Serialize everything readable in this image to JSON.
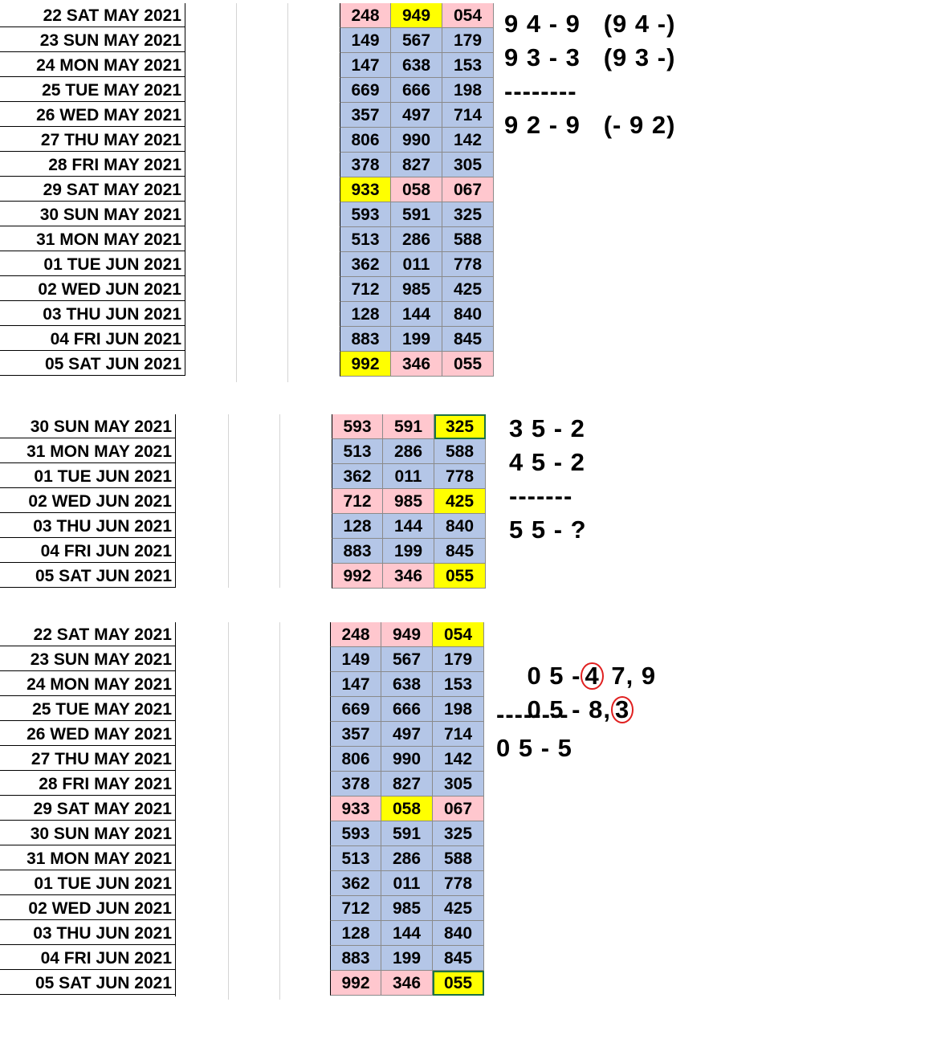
{
  "colors": {
    "blue": "#b4c6e7",
    "pink": "#ffc7ce",
    "yellow": "#ffff00"
  },
  "table1": {
    "rows": [
      {
        "date": "22 SAT MAY 2021",
        "cells": [
          {
            "v": "248",
            "c": "pink"
          },
          {
            "v": "949",
            "c": "yellow"
          },
          {
            "v": "054",
            "c": "pink"
          }
        ]
      },
      {
        "date": "23 SUN MAY 2021",
        "cells": [
          {
            "v": "149",
            "c": "blue"
          },
          {
            "v": "567",
            "c": "blue"
          },
          {
            "v": "179",
            "c": "blue"
          }
        ]
      },
      {
        "date": "24 MON MAY 2021",
        "cells": [
          {
            "v": "147",
            "c": "blue"
          },
          {
            "v": "638",
            "c": "blue"
          },
          {
            "v": "153",
            "c": "blue"
          }
        ]
      },
      {
        "date": "25 TUE MAY 2021",
        "cells": [
          {
            "v": "669",
            "c": "blue"
          },
          {
            "v": "666",
            "c": "blue"
          },
          {
            "v": "198",
            "c": "blue"
          }
        ]
      },
      {
        "date": "26 WED MAY 2021",
        "cells": [
          {
            "v": "357",
            "c": "blue"
          },
          {
            "v": "497",
            "c": "blue"
          },
          {
            "v": "714",
            "c": "blue"
          }
        ]
      },
      {
        "date": "27 THU MAY 2021",
        "cells": [
          {
            "v": "806",
            "c": "blue"
          },
          {
            "v": "990",
            "c": "blue"
          },
          {
            "v": "142",
            "c": "blue"
          }
        ]
      },
      {
        "date": "28 FRI MAY 2021",
        "cells": [
          {
            "v": "378",
            "c": "blue"
          },
          {
            "v": "827",
            "c": "blue"
          },
          {
            "v": "305",
            "c": "blue"
          }
        ]
      },
      {
        "date": "29 SAT MAY 2021",
        "cells": [
          {
            "v": "933",
            "c": "yellow"
          },
          {
            "v": "058",
            "c": "pink"
          },
          {
            "v": "067",
            "c": "pink"
          }
        ]
      },
      {
        "date": "30 SUN MAY 2021",
        "cells": [
          {
            "v": "593",
            "c": "blue"
          },
          {
            "v": "591",
            "c": "blue"
          },
          {
            "v": "325",
            "c": "blue"
          }
        ]
      },
      {
        "date": "31 MON MAY 2021",
        "cells": [
          {
            "v": "513",
            "c": "blue"
          },
          {
            "v": "286",
            "c": "blue"
          },
          {
            "v": "588",
            "c": "blue"
          }
        ]
      },
      {
        "date": "01 TUE JUN 2021",
        "cells": [
          {
            "v": "362",
            "c": "blue"
          },
          {
            "v": "011",
            "c": "blue"
          },
          {
            "v": "778",
            "c": "blue"
          }
        ]
      },
      {
        "date": "02 WED JUN 2021",
        "cells": [
          {
            "v": "712",
            "c": "blue"
          },
          {
            "v": "985",
            "c": "blue"
          },
          {
            "v": "425",
            "c": "blue"
          }
        ]
      },
      {
        "date": "03 THU JUN 2021",
        "cells": [
          {
            "v": "128",
            "c": "blue"
          },
          {
            "v": "144",
            "c": "blue"
          },
          {
            "v": "840",
            "c": "blue"
          }
        ]
      },
      {
        "date": "04 FRI JUN 2021",
        "cells": [
          {
            "v": "883",
            "c": "blue"
          },
          {
            "v": "199",
            "c": "blue"
          },
          {
            "v": "845",
            "c": "blue"
          }
        ]
      },
      {
        "date": "05 SAT JUN 2021",
        "cells": [
          {
            "v": "992",
            "c": "yellow"
          },
          {
            "v": "346",
            "c": "pink"
          },
          {
            "v": "055",
            "c": "pink"
          }
        ]
      }
    ],
    "notes": {
      "l1": "9 4 - 9   (9 4 -)",
      "l2": "9 3 - 3   (9 3 -)",
      "l3": "--------",
      "l4": "9 2 - 9   (- 9 2)"
    }
  },
  "table2": {
    "rows": [
      {
        "date": "30 SUN MAY 2021",
        "cells": [
          {
            "v": "593",
            "c": "pink"
          },
          {
            "v": "591",
            "c": "pink"
          },
          {
            "v": "325",
            "c": "yellow"
          }
        ]
      },
      {
        "date": "31 MON MAY 2021",
        "cells": [
          {
            "v": "513",
            "c": "blue"
          },
          {
            "v": "286",
            "c": "blue"
          },
          {
            "v": "588",
            "c": "blue"
          }
        ]
      },
      {
        "date": "01 TUE JUN 2021",
        "cells": [
          {
            "v": "362",
            "c": "blue"
          },
          {
            "v": "011",
            "c": "blue"
          },
          {
            "v": "778",
            "c": "blue"
          }
        ]
      },
      {
        "date": "02 WED JUN 2021",
        "cells": [
          {
            "v": "712",
            "c": "pink"
          },
          {
            "v": "985",
            "c": "pink"
          },
          {
            "v": "425",
            "c": "yellow"
          }
        ]
      },
      {
        "date": "03 THU JUN 2021",
        "cells": [
          {
            "v": "128",
            "c": "blue"
          },
          {
            "v": "144",
            "c": "blue"
          },
          {
            "v": "840",
            "c": "blue"
          }
        ]
      },
      {
        "date": "04 FRI JUN 2021",
        "cells": [
          {
            "v": "883",
            "c": "blue"
          },
          {
            "v": "199",
            "c": "blue"
          },
          {
            "v": "845",
            "c": "blue"
          }
        ]
      },
      {
        "date": "05 SAT JUN 2021",
        "cells": [
          {
            "v": "992",
            "c": "pink"
          },
          {
            "v": "346",
            "c": "pink"
          },
          {
            "v": "055",
            "c": "yellow"
          }
        ]
      }
    ],
    "notes": {
      "l1": "3 5 - 2",
      "l2": "4 5 - 2",
      "l3": "-------",
      "l4": "5 5 - ?"
    }
  },
  "table3": {
    "rows": [
      {
        "date": "22 SAT MAY 2021",
        "cells": [
          {
            "v": "248",
            "c": "pink"
          },
          {
            "v": "949",
            "c": "pink"
          },
          {
            "v": "054",
            "c": "yellow"
          }
        ]
      },
      {
        "date": "23 SUN MAY 2021",
        "cells": [
          {
            "v": "149",
            "c": "blue"
          },
          {
            "v": "567",
            "c": "blue"
          },
          {
            "v": "179",
            "c": "blue"
          }
        ]
      },
      {
        "date": "24 MON MAY 2021",
        "cells": [
          {
            "v": "147",
            "c": "blue"
          },
          {
            "v": "638",
            "c": "blue"
          },
          {
            "v": "153",
            "c": "blue"
          }
        ]
      },
      {
        "date": "25 TUE MAY 2021",
        "cells": [
          {
            "v": "669",
            "c": "blue"
          },
          {
            "v": "666",
            "c": "blue"
          },
          {
            "v": "198",
            "c": "blue"
          }
        ]
      },
      {
        "date": "26 WED MAY 2021",
        "cells": [
          {
            "v": "357",
            "c": "blue"
          },
          {
            "v": "497",
            "c": "blue"
          },
          {
            "v": "714",
            "c": "blue"
          }
        ]
      },
      {
        "date": "27 THU MAY 2021",
        "cells": [
          {
            "v": "806",
            "c": "blue"
          },
          {
            "v": "990",
            "c": "blue"
          },
          {
            "v": "142",
            "c": "blue"
          }
        ]
      },
      {
        "date": "28 FRI MAY 2021",
        "cells": [
          {
            "v": "378",
            "c": "blue"
          },
          {
            "v": "827",
            "c": "blue"
          },
          {
            "v": "305",
            "c": "blue"
          }
        ]
      },
      {
        "date": "29 SAT MAY 2021",
        "cells": [
          {
            "v": "933",
            "c": "pink"
          },
          {
            "v": "058",
            "c": "yellow"
          },
          {
            "v": "067",
            "c": "pink"
          }
        ]
      },
      {
        "date": "30 SUN MAY 2021",
        "cells": [
          {
            "v": "593",
            "c": "blue"
          },
          {
            "v": "591",
            "c": "blue"
          },
          {
            "v": "325",
            "c": "blue"
          }
        ]
      },
      {
        "date": "31 MON MAY 2021",
        "cells": [
          {
            "v": "513",
            "c": "blue"
          },
          {
            "v": "286",
            "c": "blue"
          },
          {
            "v": "588",
            "c": "blue"
          }
        ]
      },
      {
        "date": "01 TUE JUN 2021",
        "cells": [
          {
            "v": "362",
            "c": "blue"
          },
          {
            "v": "011",
            "c": "blue"
          },
          {
            "v": "778",
            "c": "blue"
          }
        ]
      },
      {
        "date": "02 WED JUN 2021",
        "cells": [
          {
            "v": "712",
            "c": "blue"
          },
          {
            "v": "985",
            "c": "blue"
          },
          {
            "v": "425",
            "c": "blue"
          }
        ]
      },
      {
        "date": "03 THU JUN 2021",
        "cells": [
          {
            "v": "128",
            "c": "blue"
          },
          {
            "v": "144",
            "c": "blue"
          },
          {
            "v": "840",
            "c": "blue"
          }
        ]
      },
      {
        "date": "04 FRI JUN 2021",
        "cells": [
          {
            "v": "883",
            "c": "blue"
          },
          {
            "v": "199",
            "c": "blue"
          },
          {
            "v": "845",
            "c": "blue"
          }
        ]
      },
      {
        "date": "05 SAT JUN 2021",
        "cells": [
          {
            "v": "992",
            "c": "pink"
          },
          {
            "v": "346",
            "c": "pink"
          },
          {
            "v": "055",
            "c": "yellow"
          }
        ]
      }
    ],
    "notes": {
      "l1_a": "0 5 -",
      "l1_circled": "4",
      "l1_b": " 7, 9",
      "l2_a": "0 5 - 8,",
      "l2_circled": "3",
      "l3": "--------",
      "l4": "0 5 - 5"
    }
  }
}
